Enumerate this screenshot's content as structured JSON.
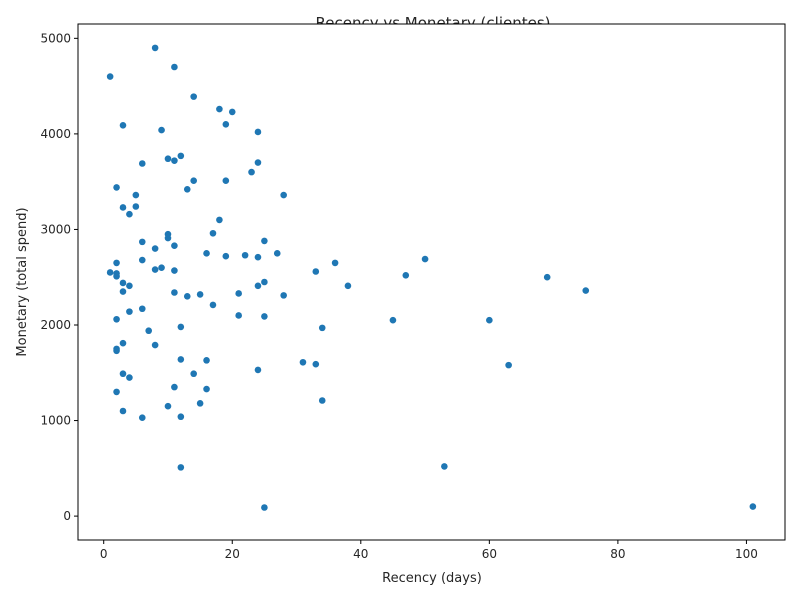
{
  "chart_data": {
    "type": "scatter",
    "title": "Recency vs Monetary (clientes)",
    "xlabel": "Recency (days)",
    "ylabel": "Monetary (total spend)",
    "xlim": [
      -4,
      106
    ],
    "ylim": [
      -250,
      5150
    ],
    "xticks": [
      0,
      20,
      40,
      60,
      80,
      100
    ],
    "yticks": [
      0,
      1000,
      2000,
      3000,
      4000,
      5000
    ],
    "grid": false,
    "marker_color": "#1f77b4",
    "points": [
      {
        "x": 1,
        "y": 4600
      },
      {
        "x": 8,
        "y": 4900
      },
      {
        "x": 11,
        "y": 4700
      },
      {
        "x": 14,
        "y": 4390
      },
      {
        "x": 18,
        "y": 4260
      },
      {
        "x": 20,
        "y": 4230
      },
      {
        "x": 19,
        "y": 4100
      },
      {
        "x": 3,
        "y": 4090
      },
      {
        "x": 9,
        "y": 4040
      },
      {
        "x": 24,
        "y": 4020
      },
      {
        "x": 12,
        "y": 3770
      },
      {
        "x": 10,
        "y": 3740
      },
      {
        "x": 11,
        "y": 3720
      },
      {
        "x": 6,
        "y": 3690
      },
      {
        "x": 24,
        "y": 3700
      },
      {
        "x": 23,
        "y": 3600
      },
      {
        "x": 14,
        "y": 3510
      },
      {
        "x": 19,
        "y": 3510
      },
      {
        "x": 2,
        "y": 3440
      },
      {
        "x": 13,
        "y": 3420
      },
      {
        "x": 5,
        "y": 3360
      },
      {
        "x": 28,
        "y": 3360
      },
      {
        "x": 3,
        "y": 3230
      },
      {
        "x": 5,
        "y": 3240
      },
      {
        "x": 4,
        "y": 3160
      },
      {
        "x": 18,
        "y": 3100
      },
      {
        "x": 10,
        "y": 2950
      },
      {
        "x": 17,
        "y": 2960
      },
      {
        "x": 10,
        "y": 2910
      },
      {
        "x": 6,
        "y": 2870
      },
      {
        "x": 25,
        "y": 2880
      },
      {
        "x": 11,
        "y": 2830
      },
      {
        "x": 8,
        "y": 2800
      },
      {
        "x": 16,
        "y": 2750
      },
      {
        "x": 19,
        "y": 2720
      },
      {
        "x": 22,
        "y": 2730
      },
      {
        "x": 24,
        "y": 2710
      },
      {
        "x": 27,
        "y": 2750
      },
      {
        "x": 6,
        "y": 2680
      },
      {
        "x": 2,
        "y": 2650
      },
      {
        "x": 36,
        "y": 2650
      },
      {
        "x": 50,
        "y": 2690
      },
      {
        "x": 9,
        "y": 2600
      },
      {
        "x": 8,
        "y": 2580
      },
      {
        "x": 11,
        "y": 2570
      },
      {
        "x": 1,
        "y": 2550
      },
      {
        "x": 2,
        "y": 2540
      },
      {
        "x": 2,
        "y": 2510
      },
      {
        "x": 33,
        "y": 2560
      },
      {
        "x": 47,
        "y": 2520
      },
      {
        "x": 69,
        "y": 2500
      },
      {
        "x": 3,
        "y": 2440
      },
      {
        "x": 4,
        "y": 2410
      },
      {
        "x": 25,
        "y": 2450
      },
      {
        "x": 24,
        "y": 2410
      },
      {
        "x": 38,
        "y": 2410
      },
      {
        "x": 3,
        "y": 2350
      },
      {
        "x": 11,
        "y": 2340
      },
      {
        "x": 15,
        "y": 2320
      },
      {
        "x": 13,
        "y": 2300
      },
      {
        "x": 21,
        "y": 2330
      },
      {
        "x": 28,
        "y": 2310
      },
      {
        "x": 75,
        "y": 2360
      },
      {
        "x": 17,
        "y": 2210
      },
      {
        "x": 6,
        "y": 2170
      },
      {
        "x": 4,
        "y": 2140
      },
      {
        "x": 21,
        "y": 2100
      },
      {
        "x": 25,
        "y": 2090
      },
      {
        "x": 2,
        "y": 2060
      },
      {
        "x": 45,
        "y": 2050
      },
      {
        "x": 60,
        "y": 2050
      },
      {
        "x": 12,
        "y": 1980
      },
      {
        "x": 34,
        "y": 1970
      },
      {
        "x": 7,
        "y": 1940
      },
      {
        "x": 3,
        "y": 1810
      },
      {
        "x": 8,
        "y": 1790
      },
      {
        "x": 2,
        "y": 1750
      },
      {
        "x": 2,
        "y": 1730
      },
      {
        "x": 12,
        "y": 1640
      },
      {
        "x": 16,
        "y": 1630
      },
      {
        "x": 31,
        "y": 1610
      },
      {
        "x": 33,
        "y": 1590
      },
      {
        "x": 63,
        "y": 1580
      },
      {
        "x": 24,
        "y": 1530
      },
      {
        "x": 3,
        "y": 1490
      },
      {
        "x": 14,
        "y": 1490
      },
      {
        "x": 4,
        "y": 1450
      },
      {
        "x": 11,
        "y": 1350
      },
      {
        "x": 16,
        "y": 1330
      },
      {
        "x": 2,
        "y": 1300
      },
      {
        "x": 34,
        "y": 1210
      },
      {
        "x": 15,
        "y": 1180
      },
      {
        "x": 10,
        "y": 1150
      },
      {
        "x": 3,
        "y": 1100
      },
      {
        "x": 6,
        "y": 1030
      },
      {
        "x": 12,
        "y": 1040
      },
      {
        "x": 12,
        "y": 510
      },
      {
        "x": 53,
        "y": 520
      },
      {
        "x": 25,
        "y": 90
      },
      {
        "x": 101,
        "y": 100
      }
    ]
  }
}
